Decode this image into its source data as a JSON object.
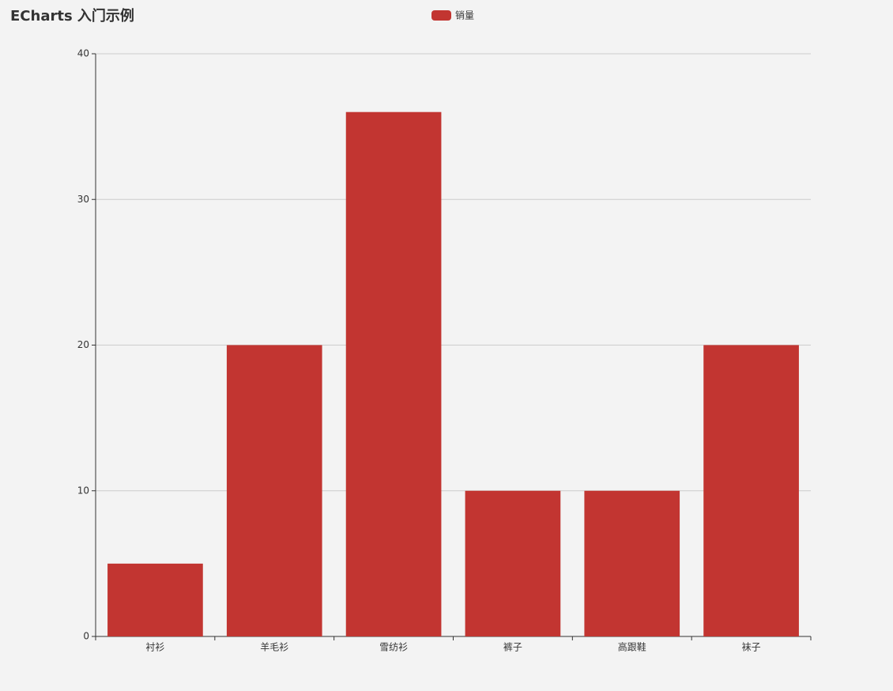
{
  "chart_data": {
    "type": "bar",
    "title": "ECharts 入门示例",
    "categories": [
      "衬衫",
      "羊毛衫",
      "雪纺衫",
      "裤子",
      "高跟鞋",
      "袜子"
    ],
    "series": [
      {
        "name": "销量",
        "color": "#c23531",
        "values": [
          5,
          20,
          36,
          10,
          10,
          20
        ]
      }
    ],
    "ylim": [
      0,
      40
    ],
    "yticks": [
      0,
      10,
      20,
      30,
      40
    ],
    "grid": true,
    "legend": "top-center"
  }
}
